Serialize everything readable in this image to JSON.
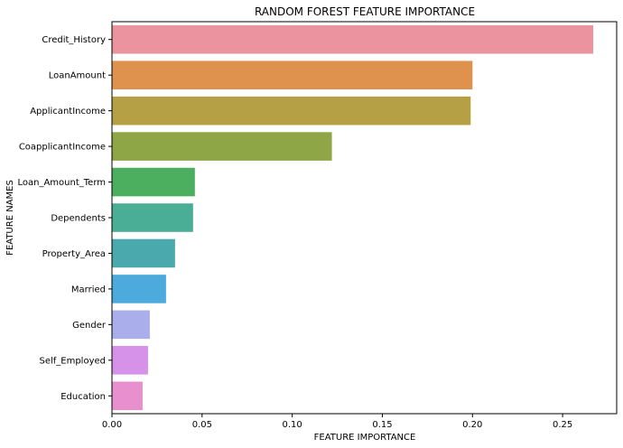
{
  "chart_data": {
    "type": "bar",
    "orientation": "horizontal",
    "title": "RANDOM FOREST FEATURE IMPORTANCE",
    "xlabel": "FEATURE IMPORTANCE",
    "ylabel": "FEATURE NAMES",
    "xlim": [
      0,
      0.28
    ],
    "xticks": [
      0.0,
      0.05,
      0.1,
      0.15,
      0.2,
      0.25
    ],
    "xtick_labels": [
      "0.00",
      "0.05",
      "0.10",
      "0.15",
      "0.20",
      "0.25"
    ],
    "grid": false,
    "legend": "none",
    "categories": [
      "Credit_History",
      "LoanAmount",
      "ApplicantIncome",
      "CoapplicantIncome",
      "Loan_Amount_Term",
      "Dependents",
      "Property_Area",
      "Married",
      "Gender",
      "Self_Employed",
      "Education"
    ],
    "values": [
      0.267,
      0.2,
      0.199,
      0.122,
      0.046,
      0.045,
      0.035,
      0.03,
      0.021,
      0.02,
      0.017
    ],
    "colors": [
      "#eb939f",
      "#df914e",
      "#b5a046",
      "#8ea645",
      "#4caf5f",
      "#4aad95",
      "#4aa9ac",
      "#4daadd",
      "#aaaeea",
      "#d692e8",
      "#e88fce"
    ]
  }
}
